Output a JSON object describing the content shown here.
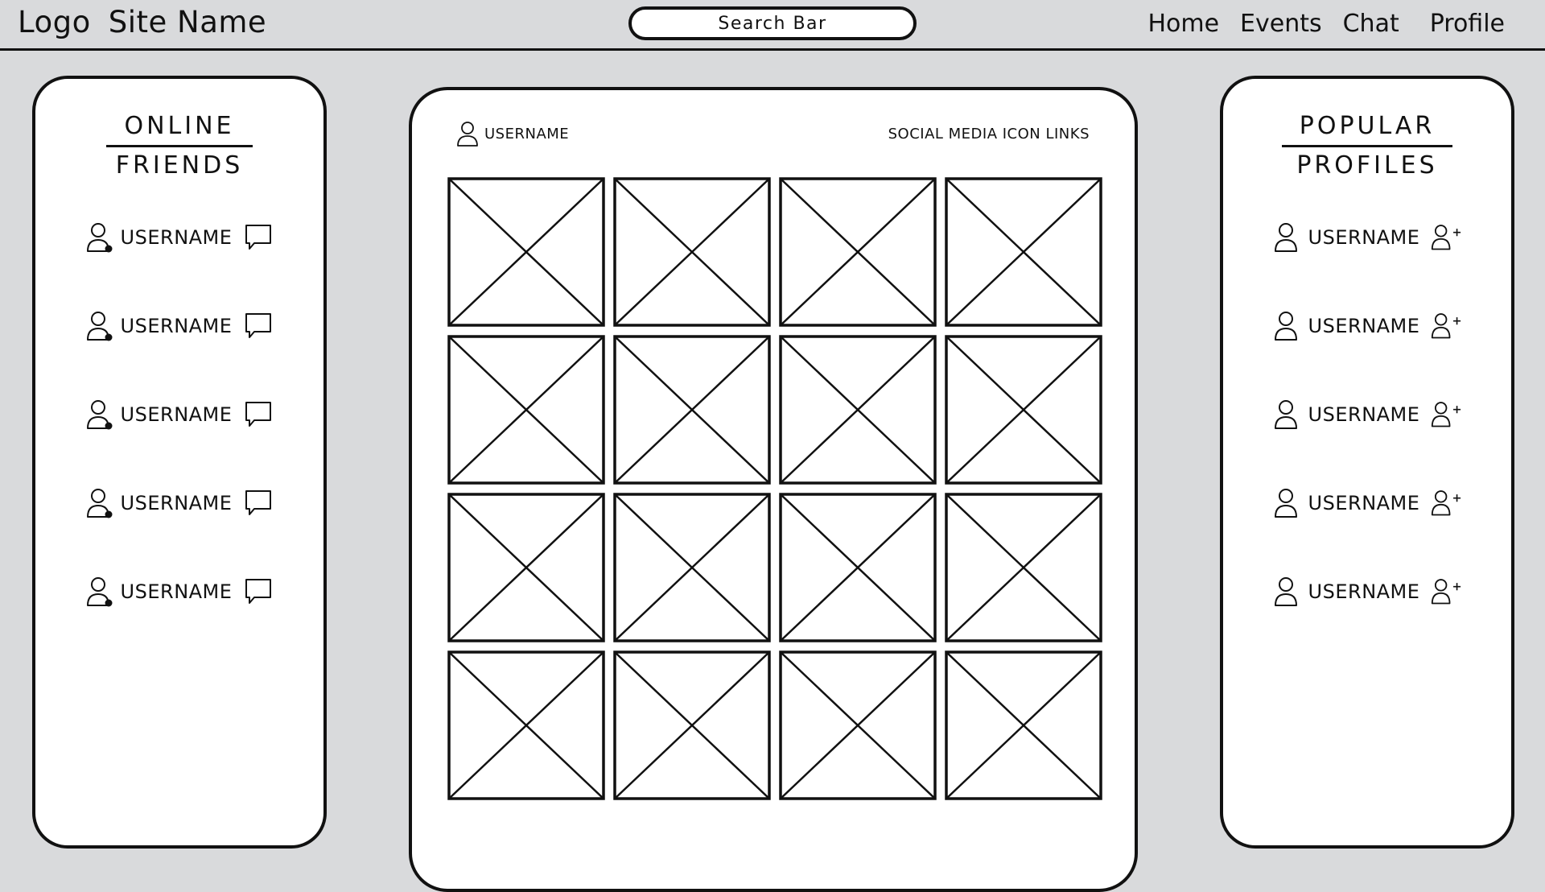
{
  "header": {
    "logo": "Logo",
    "site_name": "Site Name",
    "search_placeholder": "Search Bar",
    "nav": [
      "Home",
      "Events",
      "Chat",
      "Profile"
    ]
  },
  "online_friends": {
    "title_line1": "ONLINE",
    "title_line2": "FRIENDS",
    "users": [
      "USERNAME",
      "USERNAME",
      "USERNAME",
      "USERNAME",
      "USERNAME"
    ],
    "user_icon": "user-online-icon",
    "action_icon": "chat-bubble-icon"
  },
  "feed": {
    "username": "USERNAME",
    "social_links": "SOCIAL MEDIA ICON LINKS",
    "tile_icon": "image-placeholder-icon",
    "tile_count": 16
  },
  "popular_profiles": {
    "title_line1": "POPULAR",
    "title_line2": "PROFILES",
    "users": [
      "USERNAME",
      "USERNAME",
      "USERNAME",
      "USERNAME",
      "USERNAME"
    ],
    "user_icon": "user-icon",
    "action_icon": "add-user-icon"
  }
}
